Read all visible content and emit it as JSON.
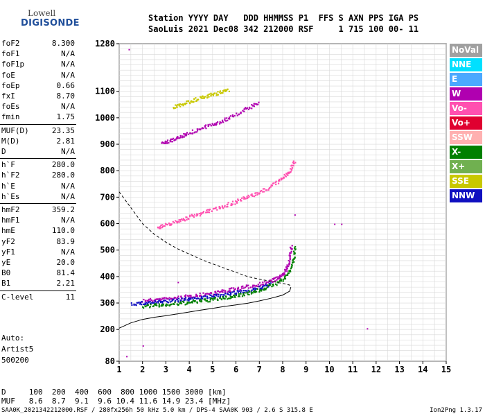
{
  "logo": {
    "line1": "Lowell",
    "line2": "DIGISONDE"
  },
  "header": {
    "line1": "Station YYYY DAY   DDD HHMMSS P1  FFS S AXN PPS IGA PS",
    "line2": "SaoLuis 2021 Dec08 342 212000 RSF     1 715 100 00- 11"
  },
  "params": [
    {
      "name": "foF2",
      "value": "8.300"
    },
    {
      "name": "foF1",
      "value": "N/A"
    },
    {
      "name": "foF1p",
      "value": "N/A"
    },
    {
      "name": "foE",
      "value": "N/A"
    },
    {
      "name": "foEp",
      "value": "0.66"
    },
    {
      "name": "fxI",
      "value": "8.70"
    },
    {
      "name": "foEs",
      "value": "N/A"
    },
    {
      "name": "fmin",
      "value": "1.75"
    },
    {
      "name": "MUF(D)",
      "value": "23.35"
    },
    {
      "name": "M(D)",
      "value": "2.81"
    },
    {
      "name": "D",
      "value": "N/A"
    },
    {
      "name": "h`F",
      "value": "280.0"
    },
    {
      "name": "h`F2",
      "value": "280.0"
    },
    {
      "name": "h`E",
      "value": "N/A"
    },
    {
      "name": "h`Es",
      "value": "N/A"
    },
    {
      "name": "hmF2",
      "value": "359.2"
    },
    {
      "name": "hmF1",
      "value": "N/A"
    },
    {
      "name": "hmE",
      "value": "110.0"
    },
    {
      "name": "yF2",
      "value": "83.9"
    },
    {
      "name": "yF1",
      "value": "N/A"
    },
    {
      "name": "yE",
      "value": "20.0"
    },
    {
      "name": "B0",
      "value": "81.4"
    },
    {
      "name": "B1",
      "value": "2.21"
    },
    {
      "name": "C-level",
      "value": "11"
    }
  ],
  "auto": {
    "line1": "Auto:",
    "line2": "Artist5",
    "line3": "500200"
  },
  "legend": [
    {
      "label": "NoVal",
      "color": "#a0a0a0"
    },
    {
      "label": "NNE",
      "color": "#00e0ff"
    },
    {
      "label": "E",
      "color": "#4aa8ff"
    },
    {
      "label": "W",
      "color": "#b000b0"
    },
    {
      "label": "Vo-",
      "color": "#ff50b0"
    },
    {
      "label": "Vo+",
      "color": "#e00030"
    },
    {
      "label": "SSW",
      "color": "#ffb0b0"
    },
    {
      "label": "X-",
      "color": "#008000"
    },
    {
      "label": "X+",
      "color": "#70b050"
    },
    {
      "label": "SSE",
      "color": "#c8c800"
    },
    {
      "label": "NNW",
      "color": "#1010c0"
    }
  ],
  "muf_table": {
    "line1": "D     100  200  400  600  800 1000 1500 3000 [km]",
    "line2": "MUF   8.6  8.7  9.1  9.6 10.4 11.6 14.9 23.4 [MHz]"
  },
  "footer": "SAA0K_2021342212000.RSF / 280fx256h 50 kHz 5.0 km / DPS-4 SAA0K 903 / 2.6 S 315.8 E",
  "version": "Ion2Png 1.3.17",
  "chart_data": {
    "type": "scatter",
    "xlim": [
      1,
      15
    ],
    "ylim": [
      80,
      1280
    ],
    "x_ticks": [
      1,
      2,
      3,
      4,
      5,
      6,
      7,
      8,
      9,
      10,
      11,
      12,
      13,
      14,
      15
    ],
    "y_ticks": [
      80,
      200,
      300,
      400,
      500,
      600,
      700,
      800,
      900,
      1000,
      1100,
      1280
    ],
    "grid": true,
    "echo_traces": [
      {
        "color": "#b000b0",
        "points": [
          [
            2.0,
            312
          ],
          [
            2.5,
            314
          ],
          [
            3.0,
            318
          ],
          [
            3.5,
            322
          ],
          [
            4.0,
            328
          ],
          [
            4.5,
            334
          ],
          [
            5.0,
            340
          ],
          [
            5.5,
            348
          ],
          [
            6.0,
            356
          ],
          [
            6.5,
            364
          ],
          [
            7.0,
            374
          ],
          [
            7.5,
            386
          ],
          [
            7.8,
            398
          ],
          [
            8.0,
            412
          ],
          [
            8.2,
            440
          ],
          [
            8.3,
            480
          ],
          [
            8.35,
            520
          ]
        ]
      },
      {
        "color": "#1010c0",
        "points": [
          [
            1.5,
            300
          ],
          [
            2.0,
            302
          ],
          [
            2.5,
            305
          ],
          [
            3.0,
            309
          ],
          [
            3.5,
            313
          ],
          [
            4.0,
            318
          ],
          [
            4.5,
            323
          ],
          [
            5.0,
            328
          ],
          [
            5.5,
            334
          ],
          [
            6.0,
            342
          ],
          [
            6.5,
            350
          ],
          [
            7.0,
            360
          ],
          [
            7.5,
            373
          ]
        ]
      },
      {
        "color": "#008000",
        "points": [
          [
            2.0,
            290
          ],
          [
            2.5,
            293
          ],
          [
            3.0,
            296
          ],
          [
            3.5,
            300
          ],
          [
            4.0,
            305
          ],
          [
            4.5,
            310
          ],
          [
            5.0,
            316
          ],
          [
            5.5,
            322
          ],
          [
            6.0,
            330
          ],
          [
            6.5,
            340
          ],
          [
            7.0,
            352
          ],
          [
            7.5,
            368
          ],
          [
            8.0,
            392
          ],
          [
            8.3,
            425
          ],
          [
            8.45,
            470
          ],
          [
            8.5,
            520
          ]
        ]
      },
      {
        "color": "#ff50b0",
        "points": [
          [
            2.6,
            585
          ],
          [
            3.0,
            598
          ],
          [
            3.5,
            612
          ],
          [
            4.0,
            628
          ],
          [
            4.5,
            642
          ],
          [
            5.0,
            656
          ],
          [
            5.5,
            670
          ],
          [
            6.0,
            686
          ],
          [
            6.5,
            703
          ],
          [
            7.0,
            720
          ],
          [
            7.5,
            745
          ],
          [
            8.0,
            775
          ],
          [
            8.3,
            805
          ],
          [
            8.5,
            840
          ]
        ]
      },
      {
        "color": "#b000b0",
        "points": [
          [
            2.8,
            905
          ],
          [
            3.2,
            918
          ],
          [
            3.6,
            932
          ],
          [
            4.0,
            946
          ],
          [
            4.5,
            962
          ],
          [
            5.0,
            978
          ],
          [
            5.5,
            995
          ],
          [
            6.0,
            1015
          ],
          [
            6.5,
            1040
          ],
          [
            7.0,
            1060
          ]
        ]
      },
      {
        "color": "#c8c800",
        "points": [
          [
            3.3,
            1042
          ],
          [
            3.7,
            1055
          ],
          [
            4.1,
            1067
          ],
          [
            4.5,
            1078
          ],
          [
            4.9,
            1089
          ],
          [
            5.3,
            1098
          ],
          [
            5.7,
            1107
          ]
        ]
      }
    ],
    "profile_dashed": [
      [
        1.0,
        720
      ],
      [
        1.5,
        660
      ],
      [
        2.0,
        600
      ],
      [
        2.5,
        560
      ],
      [
        3.0,
        530
      ],
      [
        3.5,
        505
      ],
      [
        4.0,
        485
      ],
      [
        4.5,
        465
      ],
      [
        5.0,
        448
      ],
      [
        5.5,
        432
      ],
      [
        6.0,
        416
      ],
      [
        6.5,
        400
      ],
      [
        7.0,
        390
      ],
      [
        7.5,
        382
      ],
      [
        8.0,
        374
      ],
      [
        8.3,
        368
      ],
      [
        8.35,
        360
      ]
    ],
    "profile_solid": [
      [
        1.0,
        205
      ],
      [
        1.5,
        225
      ],
      [
        2.0,
        238
      ],
      [
        2.5,
        246
      ],
      [
        3.0,
        252
      ],
      [
        3.5,
        259
      ],
      [
        4.0,
        266
      ],
      [
        4.5,
        273
      ],
      [
        5.0,
        280
      ],
      [
        5.5,
        287
      ],
      [
        6.0,
        293
      ],
      [
        6.5,
        299
      ],
      [
        7.0,
        308
      ],
      [
        7.5,
        318
      ],
      [
        8.0,
        330
      ],
      [
        8.3,
        345
      ],
      [
        8.35,
        360
      ]
    ],
    "isolated_points": [
      [
        1.3,
        100
      ],
      [
        2.0,
        140
      ],
      [
        3.5,
        380
      ],
      [
        8.5,
        635
      ],
      [
        10.2,
        600
      ],
      [
        10.5,
        600
      ],
      [
        11.6,
        205
      ],
      [
        1.4,
        1260
      ]
    ]
  }
}
